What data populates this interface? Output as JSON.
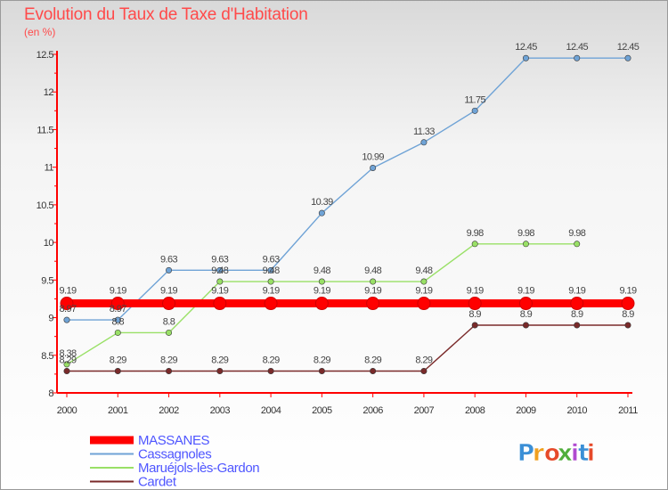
{
  "title": "Evolution du Taux de Taxe d'Habitation",
  "unit": "(en %)",
  "logo": {
    "text": "Proxiti",
    "colors": [
      "#3b8fd6",
      "#f0a020",
      "#e64a2a",
      "#4fae3c",
      "#b04ad0",
      "#3b8fd6",
      "#e64a2a"
    ]
  },
  "chart_data": {
    "type": "line",
    "title": "Evolution du Taux de Taxe d'Habitation",
    "ylabel": "(en %)",
    "xlabel": "",
    "x": [
      "2000",
      "2001",
      "2002",
      "2003",
      "2004",
      "2005",
      "2006",
      "2007",
      "2008",
      "2009",
      "2010",
      "2011"
    ],
    "ylim": [
      8,
      12.5
    ],
    "yticks": [
      "8",
      "8.5",
      "9",
      "9.5",
      "10",
      "10.5",
      "11",
      "11.5",
      "12",
      "12.5"
    ],
    "legend_position": "bottom-left",
    "series": [
      {
        "name": "MASSANES",
        "color": "#ff0000",
        "values": [
          9.19,
          9.19,
          9.19,
          9.19,
          9.19,
          9.19,
          9.19,
          9.19,
          9.19,
          9.19,
          9.19,
          9.19
        ],
        "labels": [
          "9.19",
          "9.19",
          "9.19",
          "9.19",
          "9.19",
          "9.19",
          "9.19",
          "9.19",
          "9.19",
          "9.19",
          "9.19",
          "9.19"
        ]
      },
      {
        "name": "Cassagnoles",
        "color": "#6fa3d6",
        "values": [
          8.97,
          8.97,
          9.63,
          9.63,
          9.63,
          10.39,
          10.99,
          11.33,
          11.75,
          12.45,
          12.45,
          12.45
        ],
        "labels": [
          "8.97",
          "8.97",
          "9.63",
          "9.63",
          "9.63",
          "10.39",
          "10.99",
          "11.33",
          "11.75",
          "12.45",
          "12.45",
          "12.45"
        ]
      },
      {
        "name": "Maruéjols-lès-Gardon",
        "color": "#99e066",
        "values": [
          8.38,
          8.8,
          8.8,
          9.48,
          9.48,
          9.48,
          9.48,
          9.48,
          9.98,
          9.98,
          9.98,
          null
        ],
        "labels": [
          "8.38",
          "8.8",
          "8.8",
          "9.48",
          "9.48",
          "9.48",
          "9.48",
          "9.48",
          "9.98",
          "9.98",
          "9.98",
          ""
        ]
      },
      {
        "name": "Cardet",
        "color": "#7a2a2a",
        "values": [
          8.29,
          8.29,
          8.29,
          8.29,
          8.29,
          8.29,
          8.29,
          8.29,
          8.9,
          8.9,
          8.9,
          8.9
        ],
        "labels": [
          "8.29",
          "8.29",
          "8.29",
          "8.29",
          "8.29",
          "8.29",
          "8.29",
          "8.29",
          "8.9",
          "8.9",
          "8.9",
          "8.9"
        ]
      }
    ]
  }
}
